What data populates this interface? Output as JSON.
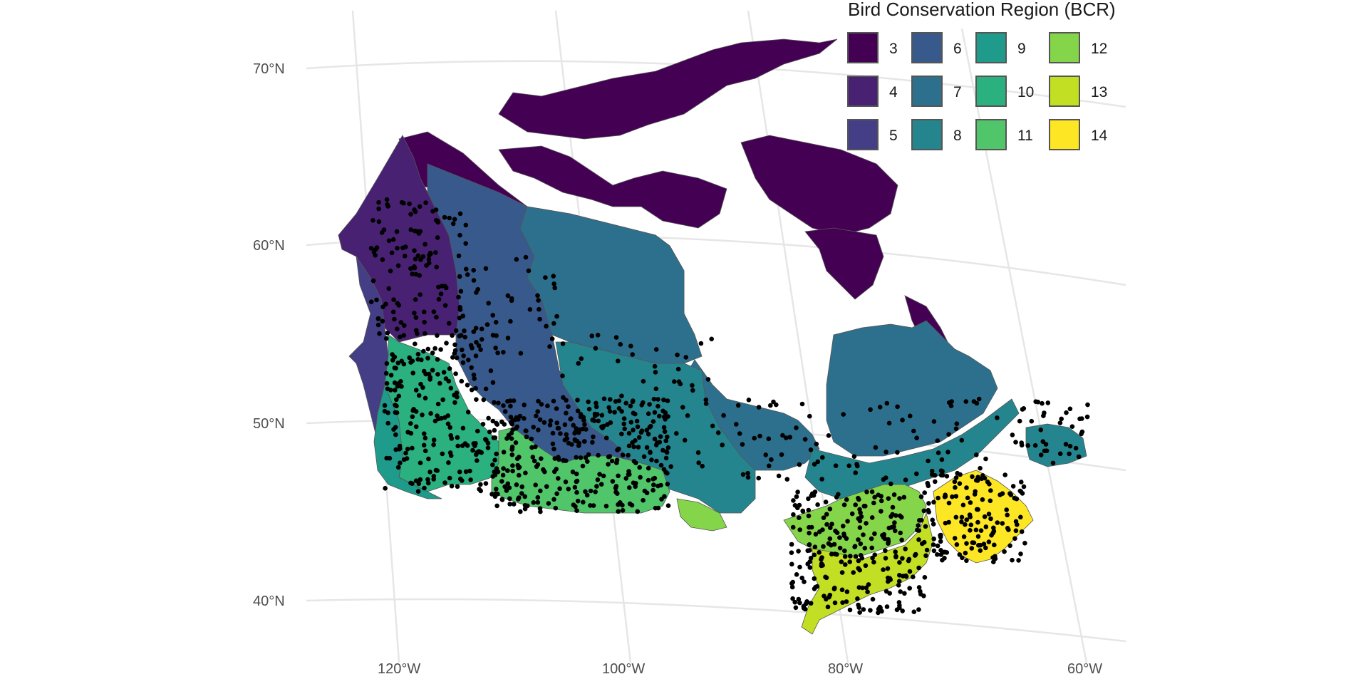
{
  "map": {
    "graticule_color": "#e6e6e6",
    "region_stroke": "#555555",
    "point_color": "#000000",
    "lat_labels": [
      "70°N",
      "60°N",
      "50°N",
      "40°N"
    ],
    "lon_labels": [
      "120°W",
      "100°W",
      "80°W",
      "60°W"
    ]
  },
  "legend": {
    "title": "Bird Conservation Region (BCR)",
    "items": [
      {
        "label": "3",
        "color": "#440154"
      },
      {
        "label": "4",
        "color": "#482173"
      },
      {
        "label": "5",
        "color": "#433E85"
      },
      {
        "label": "6",
        "color": "#38598C"
      },
      {
        "label": "7",
        "color": "#2D708E"
      },
      {
        "label": "8",
        "color": "#25858E"
      },
      {
        "label": "9",
        "color": "#1E9B8A"
      },
      {
        "label": "10",
        "color": "#2BB07F"
      },
      {
        "label": "11",
        "color": "#51C56A"
      },
      {
        "label": "12",
        "color": "#85D54A"
      },
      {
        "label": "13",
        "color": "#C2DF23"
      },
      {
        "label": "14",
        "color": "#FDE725"
      }
    ]
  }
}
